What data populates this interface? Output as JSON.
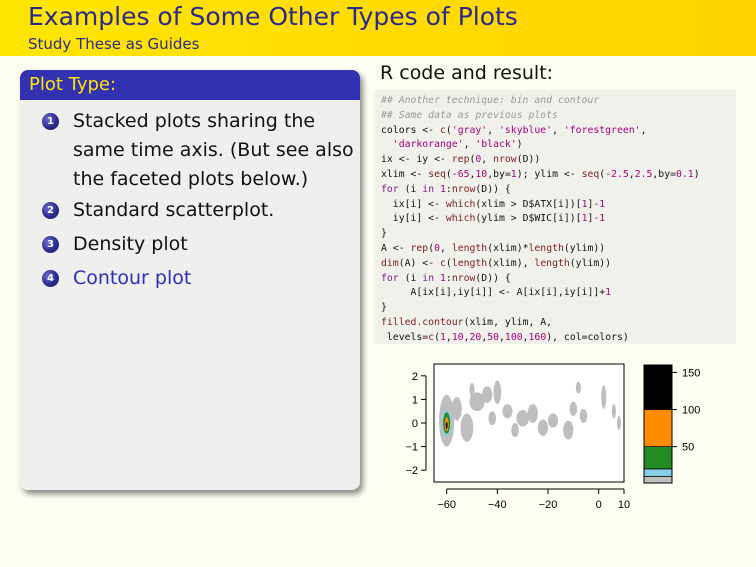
{
  "header": {
    "title": "Examples of Some Other Types of Plots",
    "subtitle": "Study These as Guides"
  },
  "block": {
    "title": "Plot Type:",
    "items": [
      {
        "num": "1",
        "text": "Stacked plots sharing the same time axis. (But see also the faceted plots below.)",
        "active": false
      },
      {
        "num": "2",
        "text": "Standard scatterplot.",
        "active": false
      },
      {
        "num": "3",
        "text": "Density plot",
        "active": false
      },
      {
        "num": "4",
        "text": "Contour plot",
        "active": true
      }
    ]
  },
  "right_heading": "R code and result:",
  "code_lines": [
    "## Another technique: bin and contour",
    "## Same data as previous plots",
    "colors <- c('gray', 'skyblue', 'forestgreen',",
    "  'darkorange', 'black')",
    "ix <- iy <- rep(0, nrow(D))",
    "xlim <- seq(-65,10,by=1); ylim <- seq(-2.5,2.5,by=0.1)",
    "for (i in 1:nrow(D)) {",
    "  ix[i] <- which(xlim > D$ATX[i])[1]-1",
    "  iy[i] <- which(ylim > D$WIC[i])[1]-1",
    "}",
    "A <- rep(0, length(xlim)*length(ylim))",
    "dim(A) <- c(length(xlim), length(ylim))",
    "for (i in 1:nrow(D)) {",
    "     A[ix[i],iy[i]] <- A[ix[i],iy[i]]+1",
    "}",
    "filled.contour(xlim, ylim, A,",
    " levels=c(1,10,20,50,100,160), col=colors)"
  ],
  "chart_data": {
    "type": "heatmap",
    "subtype": "filled contour",
    "xlabel": "",
    "ylabel": "",
    "xlim": [
      -65,
      10
    ],
    "ylim": [
      -2.5,
      2.5
    ],
    "x_ticks": [
      -60,
      -40,
      -20,
      0,
      10
    ],
    "x_tick_labels": [
      "−60",
      "−40",
      "−20",
      "0",
      "10"
    ],
    "y_ticks": [
      2,
      1,
      0,
      -1,
      -2
    ],
    "y_tick_labels": [
      "2",
      "1",
      "0",
      "−1",
      "−2"
    ],
    "levels": [
      1,
      10,
      20,
      50,
      100,
      160
    ],
    "colors": [
      "#bebebe",
      "#87ceeb",
      "#228b22",
      "#ff8c00",
      "#000000"
    ],
    "key_ticks": [
      50,
      100,
      150
    ],
    "key_tick_labels": [
      "50",
      "100",
      "150"
    ],
    "regions": [
      {
        "level": 0,
        "x": -60,
        "y": 0.1,
        "rx": 3,
        "ry": 1.1
      },
      {
        "level": 0,
        "x": -56,
        "y": 0.6,
        "rx": 2,
        "ry": 0.5
      },
      {
        "level": 0,
        "x": -52,
        "y": -0.2,
        "rx": 2.5,
        "ry": 0.6
      },
      {
        "level": 0,
        "x": -50,
        "y": 1.4,
        "rx": 1,
        "ry": 0.3
      },
      {
        "level": 0,
        "x": -48,
        "y": 0.9,
        "rx": 3,
        "ry": 0.4
      },
      {
        "level": 0,
        "x": -44,
        "y": 1.2,
        "rx": 2,
        "ry": 0.35
      },
      {
        "level": 0,
        "x": -40,
        "y": 1.3,
        "rx": 1.5,
        "ry": 0.5
      },
      {
        "level": 0,
        "x": -42,
        "y": 0.2,
        "rx": 1.5,
        "ry": 0.3
      },
      {
        "level": 0,
        "x": -36,
        "y": 0.5,
        "rx": 2,
        "ry": 0.3
      },
      {
        "level": 0,
        "x": -33,
        "y": -0.3,
        "rx": 1.5,
        "ry": 0.3
      },
      {
        "level": 0,
        "x": -30,
        "y": 0.2,
        "rx": 2.5,
        "ry": 0.35
      },
      {
        "level": 0,
        "x": -26,
        "y": 0.4,
        "rx": 2,
        "ry": 0.4
      },
      {
        "level": 0,
        "x": -22,
        "y": -0.2,
        "rx": 2,
        "ry": 0.35
      },
      {
        "level": 0,
        "x": -18,
        "y": 0.1,
        "rx": 2,
        "ry": 0.3
      },
      {
        "level": 0,
        "x": -12,
        "y": -0.3,
        "rx": 2,
        "ry": 0.4
      },
      {
        "level": 0,
        "x": -10,
        "y": 0.6,
        "rx": 1.5,
        "ry": 0.3
      },
      {
        "level": 0,
        "x": -6,
        "y": 0.3,
        "rx": 1.5,
        "ry": 0.3
      },
      {
        "level": 0,
        "x": 2,
        "y": 1.1,
        "rx": 1,
        "ry": 0.5
      },
      {
        "level": 0,
        "x": 6,
        "y": 0.5,
        "rx": 0.8,
        "ry": 0.3
      },
      {
        "level": 0,
        "x": 8,
        "y": 0.0,
        "rx": 0.8,
        "ry": 0.3
      },
      {
        "level": 0,
        "x": -8,
        "y": 1.5,
        "rx": 1,
        "ry": 0.25
      },
      {
        "level": 1,
        "x": -60,
        "y": 0.0,
        "rx": 1.8,
        "ry": 0.55
      },
      {
        "level": 2,
        "x": -60,
        "y": 0.0,
        "rx": 1.4,
        "ry": 0.45
      },
      {
        "level": 3,
        "x": -60,
        "y": -0.05,
        "rx": 0.8,
        "ry": 0.3
      },
      {
        "level": 4,
        "x": -60,
        "y": -0.1,
        "rx": 0.35,
        "ry": 0.15
      }
    ]
  }
}
